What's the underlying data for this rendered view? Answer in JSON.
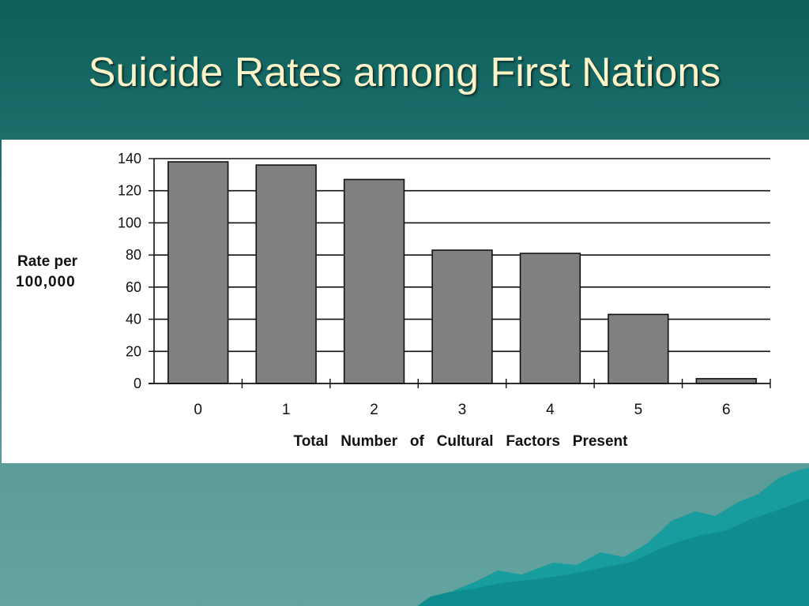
{
  "slide": {
    "title": "Suicide Rates among First Nations"
  },
  "colors": {
    "background_top": "#0d5f5c",
    "background_bottom": "#63a3a0",
    "title_text": "#fdf3c8",
    "bar_fill": "#808080",
    "mountain_fill": "#179d9d"
  },
  "chart_data": {
    "type": "bar",
    "title": "",
    "xlabel": "Total   Number   of   Cultural   Factors   Present",
    "ylabel_line1": "Rate  per",
    "ylabel_line2": "100,000",
    "categories": [
      "0",
      "1",
      "2",
      "3",
      "4",
      "5",
      "6"
    ],
    "values": [
      138,
      136,
      127,
      83,
      81,
      43,
      3
    ],
    "ylim": [
      0,
      140
    ],
    "yticks": [
      0,
      20,
      40,
      60,
      80,
      100,
      120,
      140
    ],
    "grid": true,
    "legend": "none"
  }
}
